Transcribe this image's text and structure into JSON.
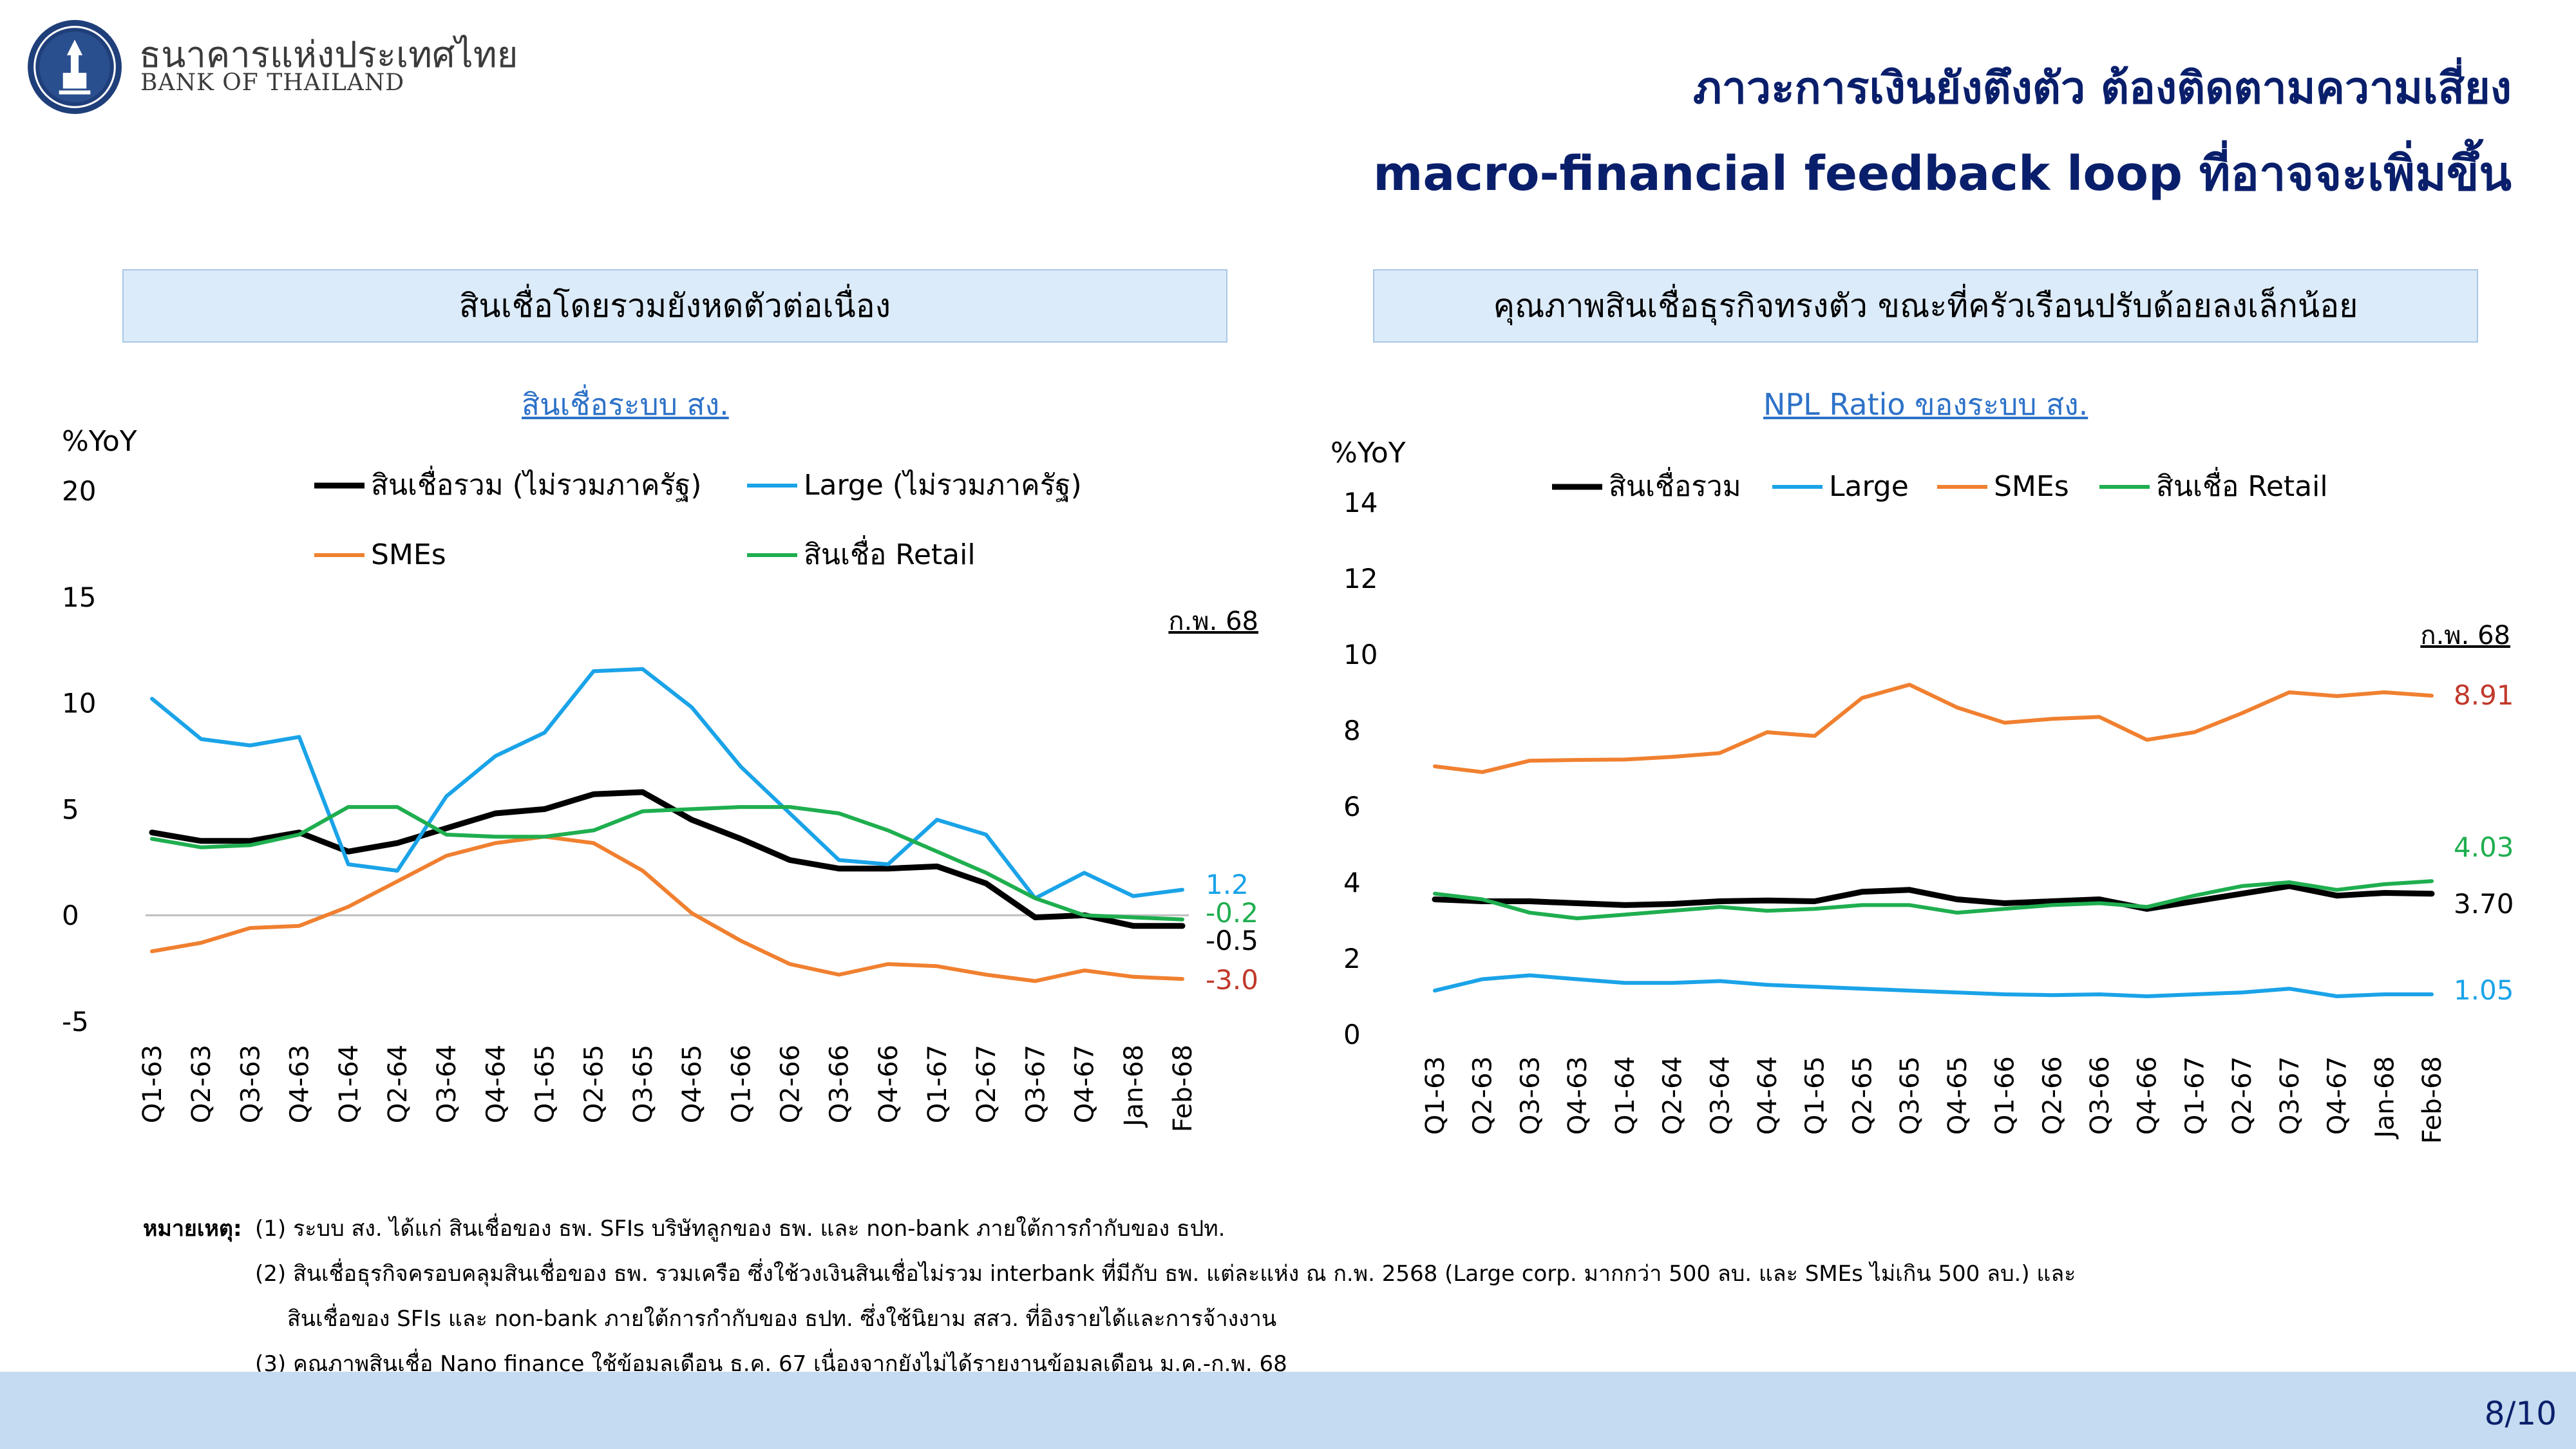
{
  "brand": {
    "thai": "ธนาคารแห่งประเทศไทย",
    "english": "BANK OF THAILAND"
  },
  "title": {
    "line1": "ภาวะการเงินยังตึงตัว ต้องติดตามความเสี่ยง",
    "line2": "macro-financial feedback loop ที่อาจจะเพิ่มขึ้น"
  },
  "left_panel": {
    "header": "สินเชื่อโดยรวมยังหดตัวต่อเนื่อง",
    "chart_title": "สินเชื่อระบบ สง."
  },
  "right_panel": {
    "header": "คุณภาพสินเชื่อธุรกิจทรงตัว ขณะที่ครัวเรือนปรับด้อยลงเล็กน้อย",
    "chart_title": "NPL Ratio ของระบบ สง."
  },
  "chart_data": [
    {
      "type": "line",
      "title": "สินเชื่อระบบ สง.",
      "ylabel": "%YoY",
      "ylim": [
        -5,
        20
      ],
      "yticks": [
        -5,
        0,
        5,
        10,
        15,
        20
      ],
      "categories": [
        "Q1-63",
        "Q2-63",
        "Q3-63",
        "Q4-63",
        "Q1-64",
        "Q2-64",
        "Q3-64",
        "Q4-64",
        "Q1-65",
        "Q2-65",
        "Q3-65",
        "Q4-65",
        "Q1-66",
        "Q2-66",
        "Q3-66",
        "Q4-66",
        "Q1-67",
        "Q2-67",
        "Q3-67",
        "Q4-67",
        "Jan-68",
        "Feb-68"
      ],
      "annotation": "ก.พ. 68",
      "legend_position": "top",
      "series": [
        {
          "name": "สินเชื่อรวม (ไม่รวมภาครัฐ)",
          "color": "#000000",
          "end_label": "-0.5",
          "values": [
            3.9,
            3.5,
            3.5,
            3.9,
            3.0,
            3.4,
            4.1,
            4.8,
            5.0,
            5.7,
            5.8,
            4.5,
            3.6,
            2.6,
            2.2,
            2.2,
            2.3,
            1.5,
            -0.1,
            0.0,
            -0.5,
            -0.5
          ]
        },
        {
          "name": "Large (ไม่รวมภาครัฐ)",
          "color": "#1aa3e8",
          "end_label": "1.2",
          "values": [
            10.2,
            8.3,
            8.0,
            8.4,
            2.4,
            2.1,
            5.6,
            7.5,
            8.6,
            11.5,
            11.6,
            9.8,
            7.0,
            4.8,
            2.6,
            2.4,
            4.5,
            3.8,
            0.8,
            2.0,
            0.9,
            1.2
          ]
        },
        {
          "name": "SMEs",
          "color": "#f08030",
          "end_label": "-3.0",
          "values": [
            -1.7,
            -1.3,
            -0.6,
            -0.5,
            0.4,
            1.6,
            2.8,
            3.4,
            3.7,
            3.4,
            2.1,
            0.1,
            -1.2,
            -2.3,
            -2.8,
            -2.3,
            -2.4,
            -2.8,
            -3.1,
            -2.6,
            -2.9,
            -3.0
          ]
        },
        {
          "name": "สินเชื่อ Retail",
          "color": "#1fae4f",
          "end_label": "-0.2",
          "values": [
            3.6,
            3.2,
            3.3,
            3.8,
            5.1,
            5.1,
            3.8,
            3.7,
            3.7,
            4.0,
            4.9,
            5.0,
            5.1,
            5.1,
            4.8,
            4.0,
            3.0,
            2.0,
            0.8,
            0.0,
            -0.1,
            -0.2
          ]
        }
      ]
    },
    {
      "type": "line",
      "title": "NPL Ratio ของระบบ สง.",
      "ylabel": "%YoY",
      "ylim": [
        0,
        14
      ],
      "yticks": [
        0,
        2,
        4,
        6,
        8,
        10,
        12,
        14
      ],
      "categories": [
        "Q1-63",
        "Q2-63",
        "Q3-63",
        "Q4-63",
        "Q1-64",
        "Q2-64",
        "Q3-64",
        "Q4-64",
        "Q1-65",
        "Q2-65",
        "Q3-65",
        "Q4-65",
        "Q1-66",
        "Q2-66",
        "Q3-66",
        "Q4-66",
        "Q1-67",
        "Q2-67",
        "Q3-67",
        "Q4-67",
        "Jan-68",
        "Feb-68"
      ],
      "annotation": "ก.พ. 68",
      "legend_position": "top",
      "series": [
        {
          "name": "สินเชื่อรวม",
          "color": "#000000",
          "end_label": "3.70",
          "values": [
            3.55,
            3.5,
            3.5,
            3.45,
            3.4,
            3.43,
            3.5,
            3.52,
            3.5,
            3.75,
            3.8,
            3.55,
            3.45,
            3.5,
            3.55,
            3.3,
            3.5,
            3.7,
            3.9,
            3.65,
            3.72,
            3.7
          ]
        },
        {
          "name": "Large",
          "color": "#1aa3e8",
          "end_label": "1.05",
          "values": [
            1.15,
            1.45,
            1.55,
            1.45,
            1.35,
            1.35,
            1.4,
            1.3,
            1.25,
            1.2,
            1.15,
            1.1,
            1.05,
            1.03,
            1.05,
            1.0,
            1.05,
            1.1,
            1.2,
            1.0,
            1.05,
            1.05
          ]
        },
        {
          "name": "SMEs",
          "color": "#f08030",
          "end_label": "8.91",
          "values": [
            7.05,
            6.9,
            7.2,
            7.22,
            7.23,
            7.3,
            7.4,
            7.95,
            7.85,
            8.85,
            9.2,
            8.6,
            8.2,
            8.3,
            8.35,
            7.75,
            7.95,
            8.45,
            9.0,
            8.9,
            9.0,
            8.91
          ]
        },
        {
          "name": "สินเชื่อ Retail",
          "color": "#1fae4f",
          "end_label": "4.03",
          "values": [
            3.7,
            3.55,
            3.2,
            3.05,
            3.15,
            3.25,
            3.35,
            3.25,
            3.3,
            3.4,
            3.4,
            3.2,
            3.3,
            3.4,
            3.45,
            3.35,
            3.65,
            3.9,
            4.0,
            3.8,
            3.95,
            4.03
          ]
        }
      ]
    }
  ],
  "notes": {
    "label": "หมายเหตุ:",
    "n1": "(1) ระบบ สง. ได้แก่ สินเชื่อของ ธพ. SFIs บริษัทลูกของ ธพ. และ non-bank ภายใต้การกำกับของ ธปท.",
    "n2a": "(2) สินเชื่อธุรกิจครอบคลุมสินเชื่อของ ธพ. รวมเครือ ซึ่งใช้วงเงินสินเชื่อไม่รวม interbank ที่มีกับ ธพ. แต่ละแห่ง ณ ก.พ. 2568 (Large corp. มากกว่า 500 ลบ. และ SMEs ไม่เกิน 500 ลบ.) และ",
    "n2b": "สินเชื่อของ SFIs และ non-bank ภายใต้การกำกับของ ธปท. ซึ่งใช้นิยาม สสว. ที่อิงรายได้และการจ้างงาน",
    "n3": "(3) คุณภาพสินเชื่อ Nano finance ใช้ข้อมูลเดือน ธ.ค. 67 เนื่องจากยังไม่ได้รายงานข้อมูลเดือน ม.ค.-ก.พ. 68"
  },
  "page_number": "8/10"
}
